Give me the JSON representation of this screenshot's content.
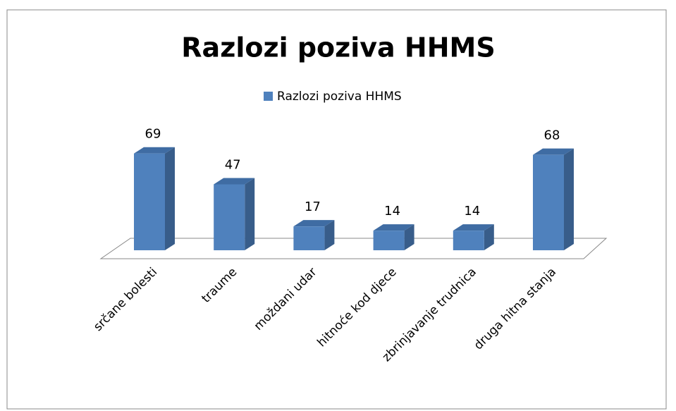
{
  "chart_data": {
    "type": "bar",
    "title": "Razlozi poziva HHMS",
    "categories": [
      "srčane bolesti",
      "traume",
      "moždani udar",
      "hitnoće kod djece",
      "zbrinjavanje trudnica",
      "druga hitna stanja"
    ],
    "series": [
      {
        "name": "Razlozi poziva HHMS",
        "color": "#4f81bd",
        "values": [
          69,
          47,
          17,
          14,
          14,
          68
        ]
      }
    ]
  }
}
